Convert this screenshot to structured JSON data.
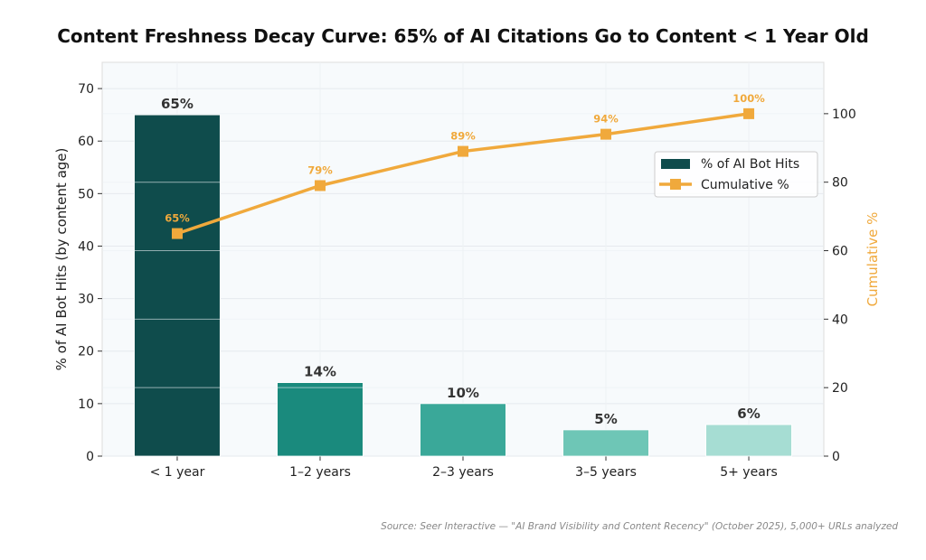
{
  "chart_data": {
    "type": "bar+line",
    "title": "Content Freshness Decay Curve: 65% of AI Citations Go to Content < 1 Year Old",
    "categories": [
      "< 1 year",
      "1–2 years",
      "2–3 years",
      "3–5 years",
      "5+ years"
    ],
    "series": [
      {
        "name": "% of AI Bot Hits",
        "type": "bar",
        "axis": "left",
        "values": [
          65,
          14,
          10,
          5,
          6
        ],
        "labels": [
          "65%",
          "14%",
          "10%",
          "5%",
          "6%"
        ],
        "colors": [
          "#0f4c4c",
          "#1a8a7d",
          "#3aa899",
          "#6ec6b6",
          "#a6ddd3"
        ]
      },
      {
        "name": "Cumulative %",
        "type": "line",
        "axis": "right",
        "values": [
          65,
          79,
          89,
          94,
          100
        ],
        "labels": [
          "65%",
          "79%",
          "89%",
          "94%",
          "100%"
        ],
        "color": "#f0a93c"
      }
    ],
    "ylabel": "% of AI Bot Hits (by content age)",
    "y2label": "Cumulative %",
    "ylim": [
      0,
      75
    ],
    "y2lim": [
      0,
      115
    ],
    "yticks": [
      0,
      10,
      20,
      30,
      40,
      50,
      60,
      70
    ],
    "y2ticks": [
      0,
      20,
      40,
      60,
      80,
      100
    ],
    "grid": true,
    "legend": "top-right",
    "background": "#f7fafc"
  },
  "source": "Source: Seer Interactive — \"AI Brand Visibility and Content Recency\" (October 2025), 5,000+ URLs analyzed"
}
